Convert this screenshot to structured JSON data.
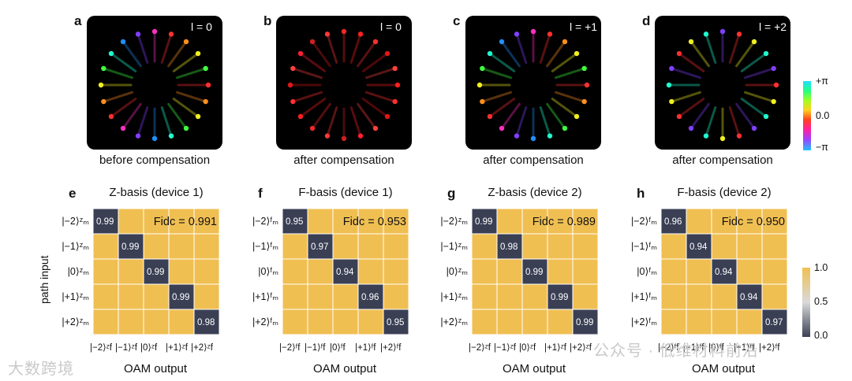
{
  "top_panels": [
    {
      "letter": "a",
      "ell": "l = 0",
      "caption": "before compensation"
    },
    {
      "letter": "b",
      "ell": "l = 0",
      "caption": "after compensation"
    },
    {
      "letter": "c",
      "ell": "l = +1",
      "caption": "after compensation"
    },
    {
      "letter": "d",
      "ell": "l = +2",
      "caption": "after compensation"
    }
  ],
  "phase_colorbar": {
    "top": "+π",
    "mid": "0.0",
    "bottom": "−π"
  },
  "chart_data": [
    {
      "type": "heatmap",
      "letter": "e",
      "title": "Z-basis (device 1)",
      "fid": "Fidc = 0.991",
      "diag": [
        0.99,
        0.99,
        0.99,
        0.99,
        0.98
      ],
      "rows": [
        "|−2⟩ᶻₘ",
        "|−1⟩ᶻₘ",
        "|0⟩ᶻₘ",
        "|+1⟩ᶻₘ",
        "|+2⟩ᶻₘ"
      ],
      "cols": [
        "|−2⟩ᶻf",
        "|−1⟩ᶻf",
        "|0⟩ᶻf",
        "|+1⟩ᶻf",
        "|+2⟩ᶻf"
      ],
      "xlabel": "OAM output",
      "ylabel": "path input"
    },
    {
      "type": "heatmap",
      "letter": "f",
      "title": "F-basis (device 1)",
      "fid": "Fidc = 0.953",
      "diag": [
        0.95,
        0.97,
        0.94,
        0.96,
        0.95
      ],
      "rows": [
        "|−2⟩ᶠₘ",
        "|−1⟩ᶠₘ",
        "|0⟩ᶠₘ",
        "|+1⟩ᶠₘ",
        "|+2⟩ᶠₘ"
      ],
      "cols": [
        "|−2⟩ᶠf",
        "|−1⟩ᶠf",
        "|0⟩ᶠf",
        "|+1⟩ᶠf",
        "|+2⟩ᶠf"
      ],
      "xlabel": "OAM output",
      "ylabel": ""
    },
    {
      "type": "heatmap",
      "letter": "g",
      "title": "Z-basis (device 2)",
      "fid": "Fidc = 0.989",
      "diag": [
        0.99,
        0.98,
        0.99,
        0.99,
        0.99
      ],
      "rows": [
        "|−2⟩ᶻₘ",
        "|−1⟩ᶻₘ",
        "|0⟩ᶻₘ",
        "|+1⟩ᶻₘ",
        "|+2⟩ᶻₘ"
      ],
      "cols": [
        "|−2⟩ᶻf",
        "|−1⟩ᶻf",
        "|0⟩ᶻf",
        "|+1⟩ᶻf",
        "|+2⟩ᶻf"
      ],
      "xlabel": "OAM output",
      "ylabel": ""
    },
    {
      "type": "heatmap",
      "letter": "h",
      "title": "F-basis (device 2)",
      "fid": "Fidc = 0.950",
      "diag": [
        0.96,
        0.94,
        0.94,
        0.94,
        0.97
      ],
      "rows": [
        "|−2⟩ᶠₘ",
        "|−1⟩ᶠₘ",
        "|0⟩ᶠₘ",
        "|+1⟩ᶠₘ",
        "|+2⟩ᶠₘ"
      ],
      "cols": [
        "|−2⟩ᶠf",
        "|−1⟩ᶠf",
        "|0⟩ᶠf",
        "|+1⟩ᶠf",
        "|+2⟩ᶠf"
      ],
      "xlabel": "OAM output",
      "ylabel": ""
    }
  ],
  "value_colorbar": {
    "top": "1.0",
    "mid": "0.5",
    "bottom": "0.0"
  },
  "watermarks": {
    "left": "大数跨境",
    "right": "公众号 · 低维材料前沿"
  },
  "colors": {
    "high": "#f0bf52",
    "low": "#3a3f54"
  }
}
